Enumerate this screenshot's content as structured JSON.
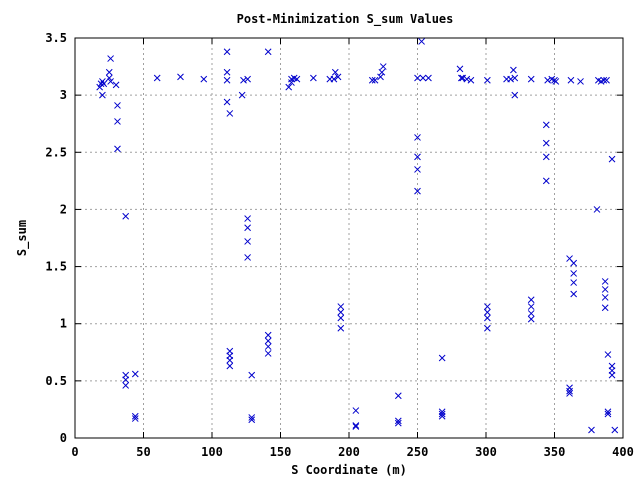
{
  "chart_data": {
    "type": "scatter",
    "title": "Post-Minimization S_sum Values",
    "xlabel": "S Coordinate (m)",
    "ylabel": "S_sum",
    "xlim": [
      0,
      400
    ],
    "ylim": [
      0,
      3.5
    ],
    "xticks": [
      "0",
      "50",
      "100",
      "150",
      "200",
      "250",
      "300",
      "350",
      "400"
    ],
    "yticks": [
      "0",
      "0.5",
      "1",
      "1.5",
      "2",
      "2.5",
      "3",
      "3.5"
    ],
    "xtick_values": [
      0,
      50,
      100,
      150,
      200,
      250,
      300,
      350,
      400
    ],
    "ytick_values": [
      0,
      0.5,
      1,
      1.5,
      2,
      2.5,
      3,
      3.5
    ],
    "grid": true,
    "marker": "x",
    "color": "#0000cc",
    "points": [
      [
        18,
        3.07
      ],
      [
        19,
        3.1
      ],
      [
        20,
        3.12
      ],
      [
        20,
        3.0
      ],
      [
        21,
        3.1
      ],
      [
        25,
        3.15
      ],
      [
        25,
        3.2
      ],
      [
        26,
        3.32
      ],
      [
        26,
        3.12
      ],
      [
        30,
        3.09
      ],
      [
        31,
        2.91
      ],
      [
        31,
        2.77
      ],
      [
        31,
        2.53
      ],
      [
        37,
        1.94
      ],
      [
        37,
        0.55
      ],
      [
        37,
        0.51
      ],
      [
        37,
        0.46
      ],
      [
        44,
        0.56
      ],
      [
        44,
        0.19
      ],
      [
        44,
        0.17
      ],
      [
        60,
        3.15
      ],
      [
        77,
        3.16
      ],
      [
        94,
        3.14
      ],
      [
        111,
        3.38
      ],
      [
        111,
        3.2
      ],
      [
        111,
        3.13
      ],
      [
        111,
        2.94
      ],
      [
        113,
        2.84
      ],
      [
        113,
        0.76
      ],
      [
        113,
        0.72
      ],
      [
        113,
        0.68
      ],
      [
        113,
        0.63
      ],
      [
        122,
        3.0
      ],
      [
        123,
        3.13
      ],
      [
        126,
        3.14
      ],
      [
        126,
        1.92
      ],
      [
        126,
        1.84
      ],
      [
        126,
        1.72
      ],
      [
        126,
        1.58
      ],
      [
        129,
        0.55
      ],
      [
        129,
        0.18
      ],
      [
        129,
        0.16
      ],
      [
        141,
        3.38
      ],
      [
        141,
        0.9
      ],
      [
        141,
        0.85
      ],
      [
        141,
        0.8
      ],
      [
        141,
        0.74
      ],
      [
        156,
        3.07
      ],
      [
        158,
        3.11
      ],
      [
        158,
        3.14
      ],
      [
        160,
        3.15
      ],
      [
        162,
        3.14
      ],
      [
        174,
        3.15
      ],
      [
        186,
        3.14
      ],
      [
        189,
        3.14
      ],
      [
        190,
        3.2
      ],
      [
        192,
        3.16
      ],
      [
        194,
        1.15
      ],
      [
        194,
        1.1
      ],
      [
        194,
        1.05
      ],
      [
        194,
        0.96
      ],
      [
        205,
        0.24
      ],
      [
        205,
        0.11
      ],
      [
        205,
        0.1
      ],
      [
        217,
        3.13
      ],
      [
        219,
        3.13
      ],
      [
        223,
        3.16
      ],
      [
        224,
        3.2
      ],
      [
        225,
        3.25
      ],
      [
        236,
        0.37
      ],
      [
        236,
        0.15
      ],
      [
        236,
        0.13
      ],
      [
        250,
        3.15
      ],
      [
        250,
        2.63
      ],
      [
        250,
        2.46
      ],
      [
        250,
        2.35
      ],
      [
        250,
        2.16
      ],
      [
        253,
        3.47
      ],
      [
        254,
        3.15
      ],
      [
        258,
        3.15
      ],
      [
        268,
        0.7
      ],
      [
        268,
        0.23
      ],
      [
        268,
        0.21
      ],
      [
        268,
        0.19
      ],
      [
        281,
        3.23
      ],
      [
        282,
        3.15
      ],
      [
        283,
        3.15
      ],
      [
        286,
        3.14
      ],
      [
        289,
        3.13
      ],
      [
        301,
        3.13
      ],
      [
        301,
        1.15
      ],
      [
        301,
        1.1
      ],
      [
        301,
        1.05
      ],
      [
        301,
        0.96
      ],
      [
        315,
        3.14
      ],
      [
        318,
        3.14
      ],
      [
        320,
        3.22
      ],
      [
        321,
        3.15
      ],
      [
        321,
        3.0
      ],
      [
        333,
        3.14
      ],
      [
        333,
        1.21
      ],
      [
        333,
        1.15
      ],
      [
        333,
        1.09
      ],
      [
        333,
        1.04
      ],
      [
        344,
        2.74
      ],
      [
        344,
        2.58
      ],
      [
        344,
        2.46
      ],
      [
        344,
        2.25
      ],
      [
        345,
        3.13
      ],
      [
        348,
        3.14
      ],
      [
        350,
        3.13
      ],
      [
        351,
        3.12
      ],
      [
        361,
        1.57
      ],
      [
        361,
        0.44
      ],
      [
        361,
        0.41
      ],
      [
        361,
        0.39
      ],
      [
        362,
        3.13
      ],
      [
        364,
        1.53
      ],
      [
        364,
        1.44
      ],
      [
        364,
        1.36
      ],
      [
        364,
        1.26
      ],
      [
        369,
        3.12
      ],
      [
        377,
        0.07
      ],
      [
        381,
        2.0
      ],
      [
        382,
        3.13
      ],
      [
        384,
        3.12
      ],
      [
        386,
        3.13
      ],
      [
        387,
        1.37
      ],
      [
        387,
        1.3
      ],
      [
        387,
        1.23
      ],
      [
        387,
        1.14
      ],
      [
        388,
        3.13
      ],
      [
        389,
        0.73
      ],
      [
        389,
        0.23
      ],
      [
        389,
        0.21
      ],
      [
        392,
        2.44
      ],
      [
        392,
        0.63
      ],
      [
        392,
        0.59
      ],
      [
        392,
        0.55
      ],
      [
        394,
        0.07
      ]
    ]
  }
}
